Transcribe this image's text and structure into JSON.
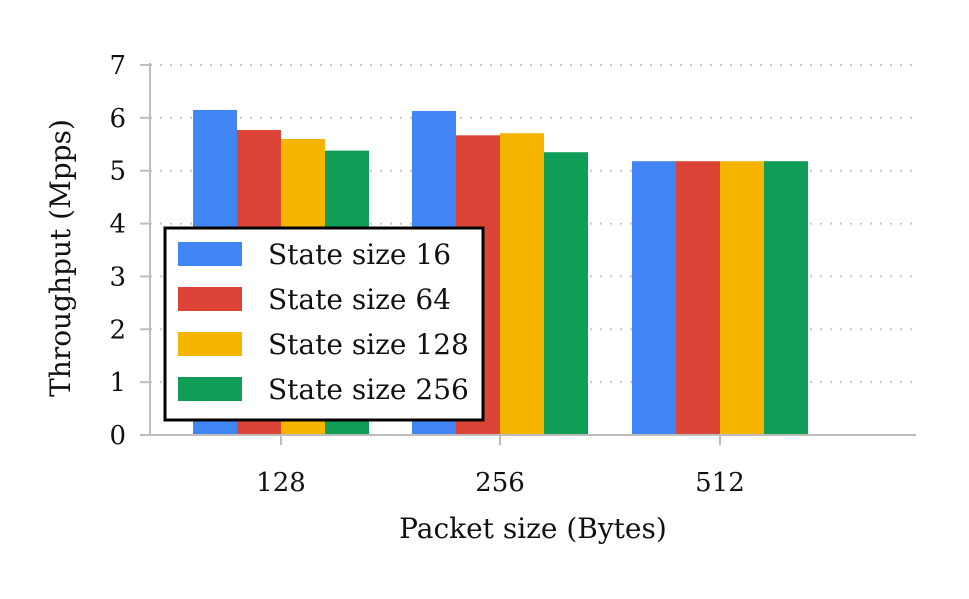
{
  "chart_data": {
    "type": "bar",
    "xlabel": "Packet size (Bytes)",
    "ylabel": "Throughput (Mpps)",
    "categories": [
      "128",
      "256",
      "512"
    ],
    "ylim": [
      0,
      7
    ],
    "yticks": [
      0,
      1,
      2,
      3,
      4,
      5,
      6,
      7
    ],
    "grid": "horizontal dotted",
    "legend_position": "lower-left",
    "series": [
      {
        "name": "State size 16",
        "color": "#4285F4",
        "values": [
          6.15,
          6.13,
          5.18
        ]
      },
      {
        "name": "State size 64",
        "color": "#DB4437",
        "values": [
          5.77,
          5.67,
          5.18
        ]
      },
      {
        "name": "State size 128",
        "color": "#F4B400",
        "values": [
          5.6,
          5.71,
          5.18
        ]
      },
      {
        "name": "State size 256",
        "color": "#0F9D58",
        "values": [
          5.38,
          5.35,
          5.18
        ]
      }
    ]
  }
}
